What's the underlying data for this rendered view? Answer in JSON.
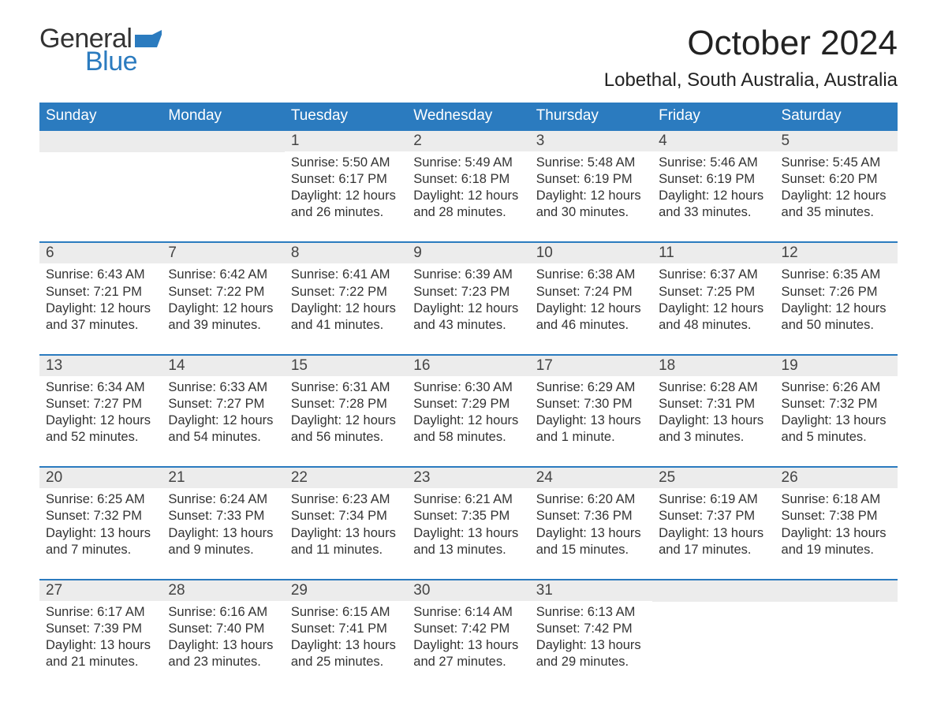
{
  "logo": {
    "word1": "General",
    "word2": "Blue",
    "flag_color": "#2b7bbf"
  },
  "title": "October 2024",
  "location": "Lobethal, South Australia, Australia",
  "colors": {
    "header_bg": "#2b7bbf",
    "header_fg": "#ffffff",
    "daynum_bg": "#ececec",
    "text": "#333333",
    "row_border": "#2b7bbf"
  },
  "day_headers": [
    "Sunday",
    "Monday",
    "Tuesday",
    "Wednesday",
    "Thursday",
    "Friday",
    "Saturday"
  ],
  "weeks": [
    [
      {
        "n": "",
        "sr": "",
        "ss": "",
        "dl": ""
      },
      {
        "n": "",
        "sr": "",
        "ss": "",
        "dl": ""
      },
      {
        "n": "1",
        "sr": "5:50 AM",
        "ss": "6:17 PM",
        "dl": "12 hours and 26 minutes."
      },
      {
        "n": "2",
        "sr": "5:49 AM",
        "ss": "6:18 PM",
        "dl": "12 hours and 28 minutes."
      },
      {
        "n": "3",
        "sr": "5:48 AM",
        "ss": "6:19 PM",
        "dl": "12 hours and 30 minutes."
      },
      {
        "n": "4",
        "sr": "5:46 AM",
        "ss": "6:19 PM",
        "dl": "12 hours and 33 minutes."
      },
      {
        "n": "5",
        "sr": "5:45 AM",
        "ss": "6:20 PM",
        "dl": "12 hours and 35 minutes."
      }
    ],
    [
      {
        "n": "6",
        "sr": "6:43 AM",
        "ss": "7:21 PM",
        "dl": "12 hours and 37 minutes."
      },
      {
        "n": "7",
        "sr": "6:42 AM",
        "ss": "7:22 PM",
        "dl": "12 hours and 39 minutes."
      },
      {
        "n": "8",
        "sr": "6:41 AM",
        "ss": "7:22 PM",
        "dl": "12 hours and 41 minutes."
      },
      {
        "n": "9",
        "sr": "6:39 AM",
        "ss": "7:23 PM",
        "dl": "12 hours and 43 minutes."
      },
      {
        "n": "10",
        "sr": "6:38 AM",
        "ss": "7:24 PM",
        "dl": "12 hours and 46 minutes."
      },
      {
        "n": "11",
        "sr": "6:37 AM",
        "ss": "7:25 PM",
        "dl": "12 hours and 48 minutes."
      },
      {
        "n": "12",
        "sr": "6:35 AM",
        "ss": "7:26 PM",
        "dl": "12 hours and 50 minutes."
      }
    ],
    [
      {
        "n": "13",
        "sr": "6:34 AM",
        "ss": "7:27 PM",
        "dl": "12 hours and 52 minutes."
      },
      {
        "n": "14",
        "sr": "6:33 AM",
        "ss": "7:27 PM",
        "dl": "12 hours and 54 minutes."
      },
      {
        "n": "15",
        "sr": "6:31 AM",
        "ss": "7:28 PM",
        "dl": "12 hours and 56 minutes."
      },
      {
        "n": "16",
        "sr": "6:30 AM",
        "ss": "7:29 PM",
        "dl": "12 hours and 58 minutes."
      },
      {
        "n": "17",
        "sr": "6:29 AM",
        "ss": "7:30 PM",
        "dl": "13 hours and 1 minute."
      },
      {
        "n": "18",
        "sr": "6:28 AM",
        "ss": "7:31 PM",
        "dl": "13 hours and 3 minutes."
      },
      {
        "n": "19",
        "sr": "6:26 AM",
        "ss": "7:32 PM",
        "dl": "13 hours and 5 minutes."
      }
    ],
    [
      {
        "n": "20",
        "sr": "6:25 AM",
        "ss": "7:32 PM",
        "dl": "13 hours and 7 minutes."
      },
      {
        "n": "21",
        "sr": "6:24 AM",
        "ss": "7:33 PM",
        "dl": "13 hours and 9 minutes."
      },
      {
        "n": "22",
        "sr": "6:23 AM",
        "ss": "7:34 PM",
        "dl": "13 hours and 11 minutes."
      },
      {
        "n": "23",
        "sr": "6:21 AM",
        "ss": "7:35 PM",
        "dl": "13 hours and 13 minutes."
      },
      {
        "n": "24",
        "sr": "6:20 AM",
        "ss": "7:36 PM",
        "dl": "13 hours and 15 minutes."
      },
      {
        "n": "25",
        "sr": "6:19 AM",
        "ss": "7:37 PM",
        "dl": "13 hours and 17 minutes."
      },
      {
        "n": "26",
        "sr": "6:18 AM",
        "ss": "7:38 PM",
        "dl": "13 hours and 19 minutes."
      }
    ],
    [
      {
        "n": "27",
        "sr": "6:17 AM",
        "ss": "7:39 PM",
        "dl": "13 hours and 21 minutes."
      },
      {
        "n": "28",
        "sr": "6:16 AM",
        "ss": "7:40 PM",
        "dl": "13 hours and 23 minutes."
      },
      {
        "n": "29",
        "sr": "6:15 AM",
        "ss": "7:41 PM",
        "dl": "13 hours and 25 minutes."
      },
      {
        "n": "30",
        "sr": "6:14 AM",
        "ss": "7:42 PM",
        "dl": "13 hours and 27 minutes."
      },
      {
        "n": "31",
        "sr": "6:13 AM",
        "ss": "7:42 PM",
        "dl": "13 hours and 29 minutes."
      },
      {
        "n": "",
        "sr": "",
        "ss": "",
        "dl": ""
      },
      {
        "n": "",
        "sr": "",
        "ss": "",
        "dl": ""
      }
    ]
  ],
  "labels": {
    "sunrise": "Sunrise: ",
    "sunset": "Sunset: ",
    "daylight": "Daylight: "
  }
}
